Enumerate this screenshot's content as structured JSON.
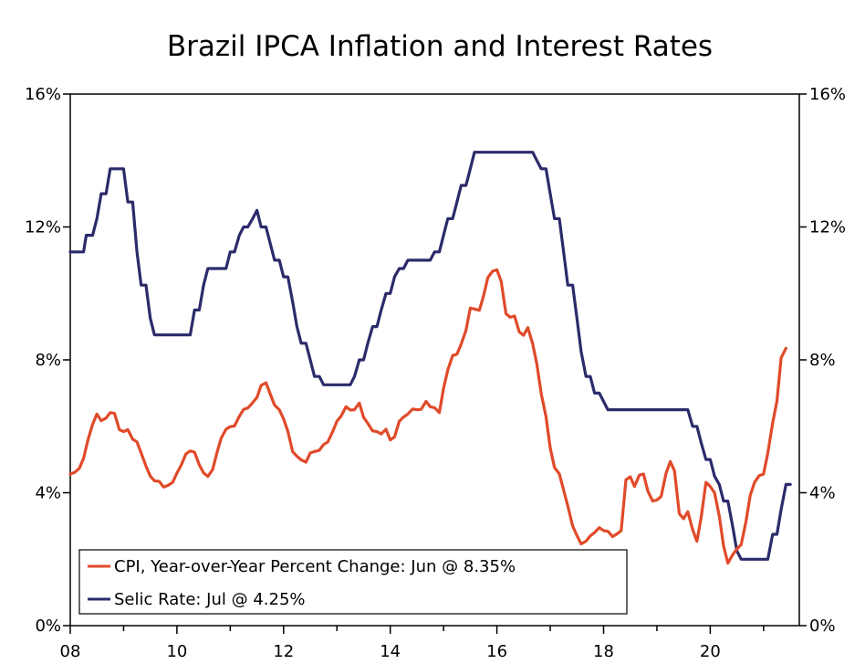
{
  "chart_data": {
    "type": "line",
    "title": "Brazil IPCA Inflation and Interest Rates",
    "xlabel": "",
    "ylabel": "",
    "xlim": [
      2008.0,
      2021.67
    ],
    "ylim": [
      0,
      16
    ],
    "x_tick_values": [
      2008,
      2010,
      2012,
      2014,
      2016,
      2018,
      2020
    ],
    "x_tick_labels": [
      "08",
      "10",
      "12",
      "14",
      "16",
      "18",
      "20"
    ],
    "y_tick_values": [
      0,
      4,
      8,
      12,
      16
    ],
    "y_tick_labels_left": [
      "0%",
      "4%",
      "8%",
      "12%",
      "16%"
    ],
    "y_tick_labels_right": [
      "0%",
      "4%",
      "8%",
      "12%",
      "16%"
    ],
    "grid": false,
    "legend_position": "bottom-left",
    "series": [
      {
        "name": "CPI, Year-over-Year Percent Change: Jun @ 8.35%",
        "color": "#e04a2a",
        "points": [
          [
            2008.0,
            4.56
          ],
          [
            2008.08,
            4.61
          ],
          [
            2008.17,
            4.73
          ],
          [
            2008.25,
            5.04
          ],
          [
            2008.33,
            5.58
          ],
          [
            2008.42,
            6.06
          ],
          [
            2008.5,
            6.37
          ],
          [
            2008.58,
            6.17
          ],
          [
            2008.67,
            6.25
          ],
          [
            2008.75,
            6.41
          ],
          [
            2008.83,
            6.39
          ],
          [
            2008.92,
            5.9
          ],
          [
            2009.0,
            5.84
          ],
          [
            2009.08,
            5.9
          ],
          [
            2009.17,
            5.61
          ],
          [
            2009.25,
            5.53
          ],
          [
            2009.33,
            5.2
          ],
          [
            2009.42,
            4.8
          ],
          [
            2009.5,
            4.5
          ],
          [
            2009.58,
            4.36
          ],
          [
            2009.67,
            4.34
          ],
          [
            2009.75,
            4.17
          ],
          [
            2009.83,
            4.22
          ],
          [
            2009.92,
            4.31
          ],
          [
            2010.0,
            4.59
          ],
          [
            2010.08,
            4.83
          ],
          [
            2010.17,
            5.17
          ],
          [
            2010.25,
            5.26
          ],
          [
            2010.33,
            5.22
          ],
          [
            2010.42,
            4.84
          ],
          [
            2010.5,
            4.6
          ],
          [
            2010.58,
            4.49
          ],
          [
            2010.67,
            4.7
          ],
          [
            2010.75,
            5.2
          ],
          [
            2010.83,
            5.64
          ],
          [
            2010.92,
            5.91
          ],
          [
            2011.0,
            5.99
          ],
          [
            2011.08,
            6.01
          ],
          [
            2011.17,
            6.3
          ],
          [
            2011.25,
            6.51
          ],
          [
            2011.33,
            6.55
          ],
          [
            2011.42,
            6.71
          ],
          [
            2011.5,
            6.87
          ],
          [
            2011.58,
            7.23
          ],
          [
            2011.67,
            7.31
          ],
          [
            2011.75,
            6.97
          ],
          [
            2011.83,
            6.64
          ],
          [
            2011.92,
            6.5
          ],
          [
            2012.0,
            6.22
          ],
          [
            2012.08,
            5.85
          ],
          [
            2012.17,
            5.24
          ],
          [
            2012.25,
            5.1
          ],
          [
            2012.33,
            4.99
          ],
          [
            2012.42,
            4.92
          ],
          [
            2012.5,
            5.2
          ],
          [
            2012.58,
            5.24
          ],
          [
            2012.67,
            5.28
          ],
          [
            2012.75,
            5.45
          ],
          [
            2012.83,
            5.53
          ],
          [
            2012.92,
            5.84
          ],
          [
            2013.0,
            6.15
          ],
          [
            2013.08,
            6.31
          ],
          [
            2013.17,
            6.59
          ],
          [
            2013.25,
            6.49
          ],
          [
            2013.33,
            6.5
          ],
          [
            2013.42,
            6.7
          ],
          [
            2013.5,
            6.27
          ],
          [
            2013.58,
            6.09
          ],
          [
            2013.67,
            5.86
          ],
          [
            2013.75,
            5.84
          ],
          [
            2013.83,
            5.77
          ],
          [
            2013.92,
            5.91
          ],
          [
            2014.0,
            5.59
          ],
          [
            2014.08,
            5.68
          ],
          [
            2014.17,
            6.15
          ],
          [
            2014.25,
            6.28
          ],
          [
            2014.33,
            6.37
          ],
          [
            2014.42,
            6.52
          ],
          [
            2014.5,
            6.5
          ],
          [
            2014.58,
            6.51
          ],
          [
            2014.67,
            6.75
          ],
          [
            2014.75,
            6.59
          ],
          [
            2014.83,
            6.56
          ],
          [
            2014.92,
            6.41
          ],
          [
            2015.0,
            7.14
          ],
          [
            2015.08,
            7.7
          ],
          [
            2015.17,
            8.13
          ],
          [
            2015.25,
            8.17
          ],
          [
            2015.33,
            8.47
          ],
          [
            2015.42,
            8.89
          ],
          [
            2015.5,
            9.56
          ],
          [
            2015.58,
            9.53
          ],
          [
            2015.67,
            9.49
          ],
          [
            2015.75,
            9.93
          ],
          [
            2015.83,
            10.48
          ],
          [
            2015.92,
            10.67
          ],
          [
            2016.0,
            10.71
          ],
          [
            2016.08,
            10.36
          ],
          [
            2016.17,
            9.39
          ],
          [
            2016.25,
            9.28
          ],
          [
            2016.33,
            9.32
          ],
          [
            2016.42,
            8.84
          ],
          [
            2016.5,
            8.74
          ],
          [
            2016.58,
            8.97
          ],
          [
            2016.67,
            8.48
          ],
          [
            2016.75,
            7.87
          ],
          [
            2016.83,
            6.99
          ],
          [
            2016.92,
            6.29
          ],
          [
            2017.0,
            5.35
          ],
          [
            2017.08,
            4.76
          ],
          [
            2017.17,
            4.57
          ],
          [
            2017.25,
            4.08
          ],
          [
            2017.33,
            3.6
          ],
          [
            2017.42,
            3.0
          ],
          [
            2017.5,
            2.71
          ],
          [
            2017.58,
            2.46
          ],
          [
            2017.67,
            2.54
          ],
          [
            2017.75,
            2.7
          ],
          [
            2017.83,
            2.8
          ],
          [
            2017.92,
            2.95
          ],
          [
            2018.0,
            2.86
          ],
          [
            2018.08,
            2.84
          ],
          [
            2018.17,
            2.68
          ],
          [
            2018.25,
            2.76
          ],
          [
            2018.33,
            2.86
          ],
          [
            2018.42,
            4.39
          ],
          [
            2018.5,
            4.48
          ],
          [
            2018.58,
            4.19
          ],
          [
            2018.67,
            4.53
          ],
          [
            2018.75,
            4.56
          ],
          [
            2018.83,
            4.05
          ],
          [
            2018.92,
            3.75
          ],
          [
            2019.0,
            3.78
          ],
          [
            2019.08,
            3.89
          ],
          [
            2019.17,
            4.58
          ],
          [
            2019.25,
            4.94
          ],
          [
            2019.33,
            4.66
          ],
          [
            2019.42,
            3.37
          ],
          [
            2019.5,
            3.22
          ],
          [
            2019.58,
            3.43
          ],
          [
            2019.67,
            2.89
          ],
          [
            2019.75,
            2.54
          ],
          [
            2019.83,
            3.27
          ],
          [
            2019.92,
            4.31
          ],
          [
            2020.0,
            4.19
          ],
          [
            2020.08,
            4.0
          ],
          [
            2020.17,
            3.3
          ],
          [
            2020.25,
            2.4
          ],
          [
            2020.33,
            1.88
          ],
          [
            2020.42,
            2.13
          ],
          [
            2020.5,
            2.31
          ],
          [
            2020.58,
            2.44
          ],
          [
            2020.67,
            3.14
          ],
          [
            2020.75,
            3.92
          ],
          [
            2020.83,
            4.31
          ],
          [
            2020.92,
            4.52
          ],
          [
            2021.0,
            4.56
          ],
          [
            2021.08,
            5.2
          ],
          [
            2021.17,
            6.1
          ],
          [
            2021.25,
            6.76
          ],
          [
            2021.33,
            8.06
          ],
          [
            2021.42,
            8.35
          ]
        ]
      },
      {
        "name": "Selic Rate: Jul @ 4.25%",
        "color": "#2b2b6b",
        "points": [
          [
            2008.0,
            11.25
          ],
          [
            2008.25,
            11.25
          ],
          [
            2008.3,
            11.75
          ],
          [
            2008.42,
            11.75
          ],
          [
            2008.5,
            12.25
          ],
          [
            2008.58,
            13.0
          ],
          [
            2008.67,
            13.0
          ],
          [
            2008.75,
            13.75
          ],
          [
            2009.0,
            13.75
          ],
          [
            2009.08,
            12.75
          ],
          [
            2009.17,
            12.75
          ],
          [
            2009.25,
            11.25
          ],
          [
            2009.33,
            10.25
          ],
          [
            2009.42,
            10.25
          ],
          [
            2009.5,
            9.25
          ],
          [
            2009.58,
            8.75
          ],
          [
            2010.25,
            8.75
          ],
          [
            2010.33,
            9.5
          ],
          [
            2010.42,
            9.5
          ],
          [
            2010.5,
            10.25
          ],
          [
            2010.58,
            10.75
          ],
          [
            2010.92,
            10.75
          ],
          [
            2011.0,
            11.25
          ],
          [
            2011.08,
            11.25
          ],
          [
            2011.17,
            11.75
          ],
          [
            2011.25,
            12.0
          ],
          [
            2011.33,
            12.0
          ],
          [
            2011.42,
            12.25
          ],
          [
            2011.5,
            12.5
          ],
          [
            2011.58,
            12.0
          ],
          [
            2011.67,
            12.0
          ],
          [
            2011.75,
            11.5
          ],
          [
            2011.83,
            11.0
          ],
          [
            2011.92,
            11.0
          ],
          [
            2012.0,
            10.5
          ],
          [
            2012.08,
            10.5
          ],
          [
            2012.17,
            9.75
          ],
          [
            2012.25,
            9.0
          ],
          [
            2012.33,
            8.5
          ],
          [
            2012.42,
            8.5
          ],
          [
            2012.5,
            8.0
          ],
          [
            2012.58,
            7.5
          ],
          [
            2012.67,
            7.5
          ],
          [
            2012.75,
            7.25
          ],
          [
            2013.25,
            7.25
          ],
          [
            2013.33,
            7.5
          ],
          [
            2013.42,
            8.0
          ],
          [
            2013.5,
            8.0
          ],
          [
            2013.58,
            8.5
          ],
          [
            2013.67,
            9.0
          ],
          [
            2013.75,
            9.0
          ],
          [
            2013.83,
            9.5
          ],
          [
            2013.92,
            10.0
          ],
          [
            2014.0,
            10.0
          ],
          [
            2014.08,
            10.5
          ],
          [
            2014.17,
            10.75
          ],
          [
            2014.25,
            10.75
          ],
          [
            2014.33,
            11.0
          ],
          [
            2014.75,
            11.0
          ],
          [
            2014.83,
            11.25
          ],
          [
            2014.92,
            11.25
          ],
          [
            2015.0,
            11.75
          ],
          [
            2015.08,
            12.25
          ],
          [
            2015.17,
            12.25
          ],
          [
            2015.25,
            12.75
          ],
          [
            2015.33,
            13.25
          ],
          [
            2015.42,
            13.25
          ],
          [
            2015.5,
            13.75
          ],
          [
            2015.58,
            14.25
          ],
          [
            2016.67,
            14.25
          ],
          [
            2016.75,
            14.0
          ],
          [
            2016.83,
            13.75
          ],
          [
            2016.92,
            13.75
          ],
          [
            2017.0,
            13.0
          ],
          [
            2017.08,
            12.25
          ],
          [
            2017.17,
            12.25
          ],
          [
            2017.25,
            11.25
          ],
          [
            2017.33,
            10.25
          ],
          [
            2017.42,
            10.25
          ],
          [
            2017.5,
            9.25
          ],
          [
            2017.58,
            8.25
          ],
          [
            2017.67,
            7.5
          ],
          [
            2017.75,
            7.5
          ],
          [
            2017.83,
            7.0
          ],
          [
            2017.92,
            7.0
          ],
          [
            2018.0,
            6.75
          ],
          [
            2018.08,
            6.5
          ],
          [
            2019.58,
            6.5
          ],
          [
            2019.67,
            6.0
          ],
          [
            2019.75,
            6.0
          ],
          [
            2019.83,
            5.5
          ],
          [
            2019.92,
            5.0
          ],
          [
            2020.0,
            5.0
          ],
          [
            2020.08,
            4.5
          ],
          [
            2020.17,
            4.25
          ],
          [
            2020.25,
            3.75
          ],
          [
            2020.33,
            3.75
          ],
          [
            2020.42,
            3.0
          ],
          [
            2020.5,
            2.25
          ],
          [
            2020.58,
            2.0
          ],
          [
            2021.08,
            2.0
          ],
          [
            2021.17,
            2.75
          ],
          [
            2021.25,
            2.75
          ],
          [
            2021.33,
            3.5
          ],
          [
            2021.42,
            4.25
          ],
          [
            2021.5,
            4.25
          ]
        ]
      }
    ]
  }
}
